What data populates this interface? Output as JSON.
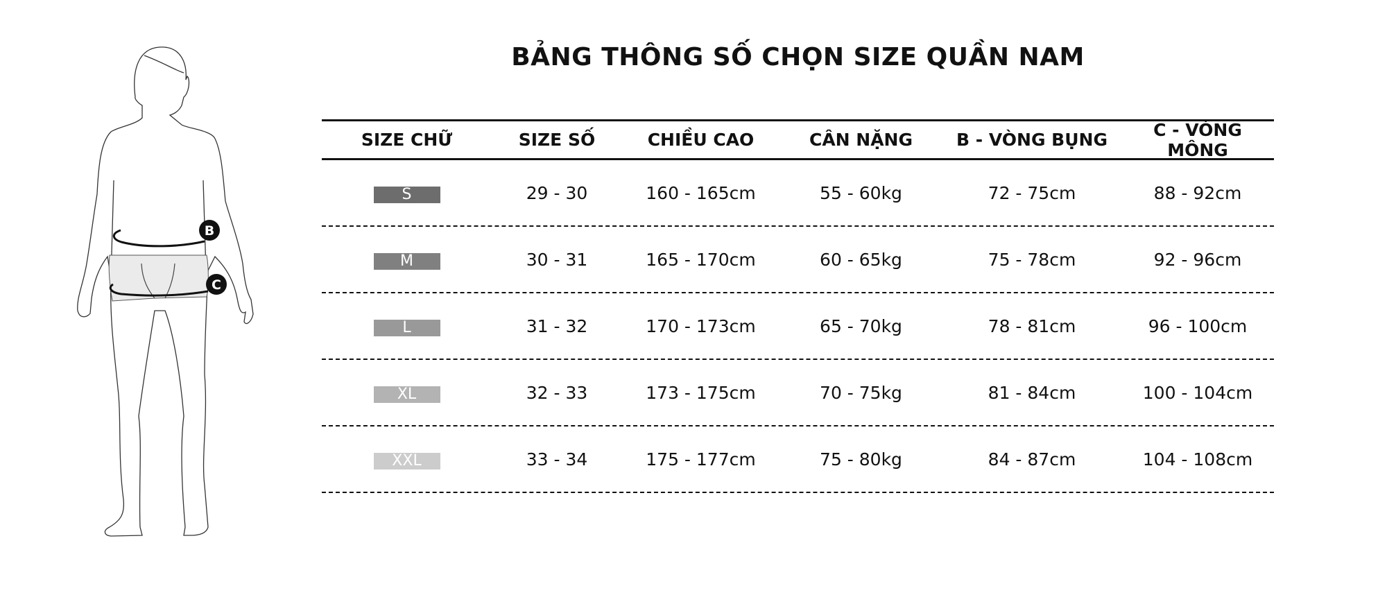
{
  "title": "BẢNG THÔNG SỐ CHỌN SIZE QUẦN NAM",
  "figure": {
    "markers": [
      "B",
      "C"
    ]
  },
  "table": {
    "headers": [
      "SIZE CHỮ",
      "SIZE SỐ",
      "CHIỀU CAO",
      "CÂN NẶNG",
      "B - VÒNG BỤNG",
      "C - VÒNG MÔNG"
    ],
    "rows": [
      {
        "size": "S",
        "color": "#6d6d6d",
        "num": "29 - 30",
        "height": "160 - 165cm",
        "weight": "55 - 60kg",
        "waist": "72 - 75cm",
        "hip": "88 - 92cm"
      },
      {
        "size": "M",
        "color": "#808080",
        "num": "30 - 31",
        "height": "165 - 170cm",
        "weight": "60 - 65kg",
        "waist": "75 - 78cm",
        "hip": "92 - 96cm"
      },
      {
        "size": "L",
        "color": "#999999",
        "num": "31 - 32",
        "height": "170 - 173cm",
        "weight": "65 - 70kg",
        "waist": "78 - 81cm",
        "hip": "96 - 100cm"
      },
      {
        "size": "XL",
        "color": "#b3b3b3",
        "num": "32 - 33",
        "height": "173 - 175cm",
        "weight": "70 - 75kg",
        "waist": "81 - 84cm",
        "hip": "100 - 104cm"
      },
      {
        "size": "XXL",
        "color": "#cccccc",
        "num": "33 - 34",
        "height": "175 - 177cm",
        "weight": "75 - 80kg",
        "waist": "84 - 87cm",
        "hip": "104 - 108cm"
      }
    ]
  }
}
